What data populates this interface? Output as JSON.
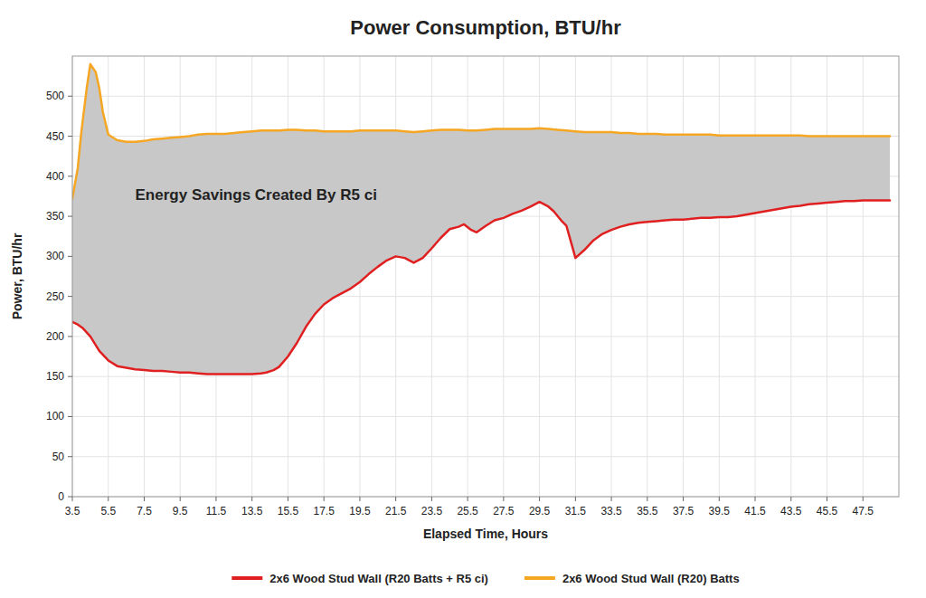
{
  "chart_data": {
    "type": "line",
    "title": "Power Consumption, BTU/hr",
    "x_label": "Elapsed Time, Hours",
    "y_label": "Power, BTU/hr",
    "xlim": [
      3.5,
      49.5
    ],
    "ylim": [
      0,
      550
    ],
    "xticks": [
      3.5,
      5.5,
      7.5,
      9.5,
      11.5,
      13.5,
      15.5,
      17.5,
      19.5,
      21.5,
      23.5,
      25.5,
      27.5,
      29.5,
      31.5,
      33.5,
      35.5,
      37.5,
      39.5,
      41.5,
      43.5,
      45.5,
      47.5
    ],
    "yticks": [
      0,
      50,
      100,
      150,
      200,
      250,
      300,
      350,
      400,
      450,
      500
    ],
    "grid": true,
    "legend": "bottom",
    "annotations": [
      {
        "text": "Energy Savings Created By R5 ci",
        "x": 7.0,
        "y": 375
      }
    ],
    "series": [
      {
        "name": "2x6 Wood Stud Wall (R20 Batts + R5 ci)",
        "color": "#e02020",
        "x": [
          3.5,
          3.8,
          4.1,
          4.5,
          5.0,
          5.5,
          6.0,
          6.5,
          7.0,
          7.5,
          8.0,
          8.5,
          9.0,
          9.5,
          10.0,
          10.5,
          11.0,
          11.5,
          12.0,
          12.5,
          13.0,
          13.5,
          14.0,
          14.3,
          14.7,
          15.0,
          15.5,
          16.0,
          16.5,
          17.0,
          17.5,
          18.0,
          18.5,
          19.0,
          19.5,
          20.0,
          20.5,
          21.0,
          21.5,
          22.0,
          22.5,
          23.0,
          23.5,
          24.0,
          24.5,
          25.0,
          25.3,
          25.7,
          26.0,
          26.5,
          27.0,
          27.5,
          28.0,
          28.5,
          29.0,
          29.5,
          30.0,
          30.3,
          30.7,
          31.0,
          31.5,
          32.0,
          32.5,
          33.0,
          33.5,
          34.0,
          34.5,
          35.0,
          35.5,
          36.0,
          36.5,
          37.0,
          37.5,
          38.0,
          38.5,
          39.0,
          39.5,
          40.0,
          40.5,
          41.0,
          41.5,
          42.0,
          42.5,
          43.0,
          43.5,
          44.0,
          44.5,
          45.0,
          45.5,
          46.0,
          46.5,
          47.0,
          47.5,
          48.0,
          48.5,
          49.0
        ],
        "values": [
          218,
          215,
          210,
          200,
          182,
          170,
          163,
          161,
          159,
          158,
          157,
          157,
          156,
          155,
          155,
          154,
          153,
          153,
          153,
          153,
          153,
          153,
          154,
          155,
          158,
          162,
          175,
          192,
          212,
          228,
          240,
          248,
          254,
          260,
          268,
          278,
          287,
          295,
          300,
          298,
          292,
          298,
          310,
          323,
          334,
          337,
          340,
          333,
          330,
          338,
          345,
          348,
          353,
          357,
          362,
          368,
          362,
          356,
          345,
          338,
          298,
          308,
          320,
          328,
          333,
          337,
          340,
          342,
          343,
          344,
          345,
          346,
          346,
          347,
          348,
          348,
          349,
          349,
          350,
          352,
          354,
          356,
          358,
          360,
          362,
          363,
          365,
          366,
          367,
          368,
          369,
          369,
          370,
          370,
          370,
          370
        ]
      },
      {
        "name": "2x6 Wood Stud Wall (R20) Batts",
        "color": "#f5a623",
        "x": [
          3.5,
          3.8,
          4.0,
          4.3,
          4.5,
          4.8,
          5.0,
          5.2,
          5.5,
          6.0,
          6.5,
          7.0,
          7.5,
          8.0,
          8.5,
          9.0,
          9.5,
          10.0,
          10.5,
          11.0,
          11.5,
          12.0,
          12.5,
          13.0,
          13.5,
          14.0,
          14.5,
          15.0,
          15.5,
          16.0,
          16.5,
          17.0,
          17.5,
          18.0,
          18.5,
          19.0,
          19.5,
          20.0,
          20.5,
          21.0,
          21.5,
          22.0,
          22.5,
          23.0,
          23.5,
          24.0,
          24.5,
          25.0,
          25.5,
          26.0,
          26.5,
          27.0,
          27.5,
          28.0,
          28.5,
          29.0,
          29.5,
          30.0,
          30.5,
          31.0,
          31.5,
          32.0,
          32.5,
          33.0,
          33.5,
          34.0,
          34.5,
          35.0,
          35.5,
          36.0,
          36.5,
          37.0,
          37.5,
          38.0,
          38.5,
          39.0,
          39.5,
          40.0,
          40.5,
          41.0,
          41.5,
          42.0,
          42.5,
          43.0,
          43.5,
          44.0,
          44.5,
          45.0,
          45.5,
          46.0,
          46.5,
          47.0,
          47.5,
          48.0,
          48.5,
          49.0
        ],
        "values": [
          372,
          410,
          455,
          510,
          540,
          530,
          510,
          480,
          452,
          445,
          443,
          443,
          444,
          446,
          447,
          448,
          449,
          450,
          452,
          453,
          453,
          453,
          454,
          455,
          456,
          457,
          457,
          457,
          458,
          458,
          457,
          457,
          456,
          456,
          456,
          456,
          457,
          457,
          457,
          457,
          457,
          456,
          455,
          456,
          457,
          458,
          458,
          458,
          457,
          457,
          458,
          459,
          459,
          459,
          459,
          459,
          460,
          459,
          458,
          457,
          456,
          455,
          455,
          455,
          455,
          454,
          454,
          453,
          453,
          453,
          452,
          452,
          452,
          452,
          452,
          452,
          451,
          451,
          451,
          451,
          451,
          451,
          451,
          451,
          451,
          451,
          450,
          450,
          450,
          450,
          450,
          450,
          450,
          450,
          450,
          450
        ]
      }
    ]
  }
}
